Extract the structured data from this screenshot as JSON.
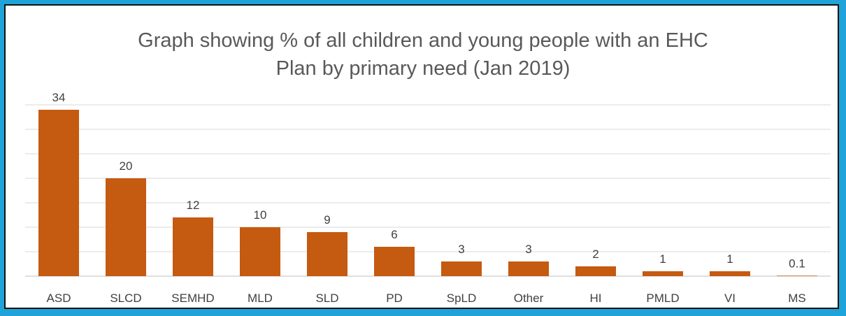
{
  "chart_data": {
    "type": "bar",
    "title_lines": [
      "Graph showing % of all children and young people with an EHC",
      "Plan by primary need (Jan 2019)"
    ],
    "categories": [
      "ASD",
      "SLCD",
      "SEMHD",
      "MLD",
      "SLD",
      "PD",
      "SpLD",
      "Other",
      "HI",
      "PMLD",
      "VI",
      "MS"
    ],
    "values": [
      34,
      20,
      12,
      10,
      9,
      6,
      3,
      3,
      2,
      1,
      1,
      0.1
    ],
    "data_labels": [
      "34",
      "20",
      "12",
      "10",
      "9",
      "6",
      "3",
      "3",
      "2",
      "1",
      "1",
      "0.1"
    ],
    "xlabel": "",
    "ylabel": "",
    "ylim": [
      0,
      35
    ],
    "grid": true,
    "legend": "none",
    "colors": {
      "bar": "#c55a11",
      "grid": "#d9d9d9",
      "axis": "#bfbfbf",
      "text": "#404040",
      "title": "#595959",
      "border": "#1fa3d8"
    }
  }
}
